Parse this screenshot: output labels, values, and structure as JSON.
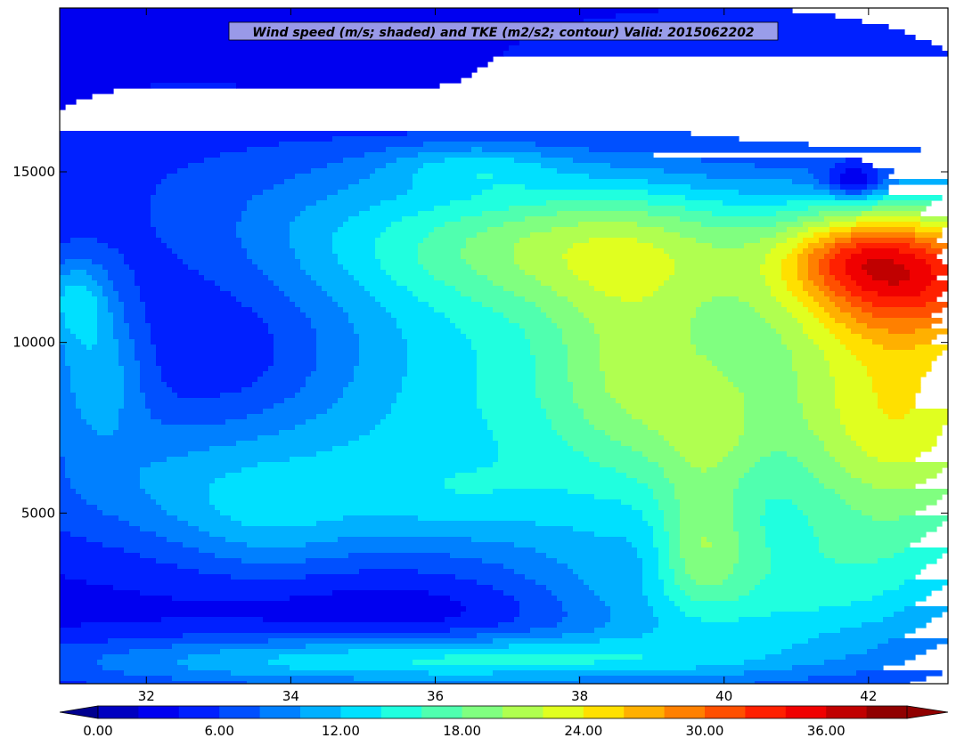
{
  "chart_data": {
    "type": "heatmap",
    "title": "Wind speed (m/s; shaded) and TKE (m2/s2; contour) Valid: 2015062202",
    "xlabel": "",
    "ylabel": "",
    "xlim": [
      30.8,
      43.1
    ],
    "ylim": [
      0,
      19800
    ],
    "x_ticks": [
      32,
      34,
      36,
      38,
      40,
      42
    ],
    "y_ticks": [
      5000,
      10000,
      15000
    ],
    "grid": false,
    "colorbar": {
      "orientation": "horizontal",
      "placement": "bottom",
      "min": 0,
      "max": 40,
      "step": 2,
      "extend": "both",
      "tick_values": [
        0,
        6,
        12,
        18,
        24,
        30,
        36
      ],
      "tick_labels": [
        "0.00",
        "6.00",
        "12.00",
        "18.00",
        "24.00",
        "30.00",
        "36.00"
      ],
      "colors": [
        "#00008f",
        "#0000c0",
        "#0000f0",
        "#0020ff",
        "#0050ff",
        "#0080ff",
        "#00b0ff",
        "#00e0ff",
        "#20ffdf",
        "#50ffaf",
        "#80ff80",
        "#b0ff50",
        "#e0ff20",
        "#ffe000",
        "#ffb000",
        "#ff8000",
        "#ff5000",
        "#ff2000",
        "#f00000",
        "#c00000",
        "#900000"
      ]
    },
    "background_speed": 3,
    "features": [
      {
        "x": 41.0,
        "y": 8500,
        "sx": 4.5,
        "sy": 3200,
        "a": 14
      },
      {
        "x": 42.6,
        "y": 12200,
        "sx": 1.2,
        "sy": 1400,
        "a": 21
      },
      {
        "x": 42.5,
        "y": 7200,
        "sx": 1.0,
        "sy": 3200,
        "a": 8
      },
      {
        "x": 41.7,
        "y": 12500,
        "sx": 0.55,
        "sy": 650,
        "a": 4
      },
      {
        "x": 37.9,
        "y": 13000,
        "sx": 2.4,
        "sy": 1500,
        "a": 13
      },
      {
        "x": 36.5,
        "y": 15200,
        "sx": 0.9,
        "sy": 500,
        "a": 5
      },
      {
        "x": 38.7,
        "y": 9500,
        "sx": 0.8,
        "sy": 2600,
        "a": 5
      },
      {
        "x": 40.3,
        "y": 2500,
        "sx": 2.0,
        "sy": 1700,
        "a": 9
      },
      {
        "x": 39.8,
        "y": 7000,
        "sx": 0.5,
        "sy": 1500,
        "a": 4
      },
      {
        "x": 37.0,
        "y": 700,
        "sx": 2.5,
        "sy": 500,
        "a": 7
      },
      {
        "x": 33.5,
        "y": 600,
        "sx": 2.8,
        "sy": 600,
        "a": 6
      },
      {
        "x": 33.0,
        "y": 5800,
        "sx": 2.1,
        "sy": 1500,
        "a": 6
      },
      {
        "x": 33.7,
        "y": 4500,
        "sx": 0.9,
        "sy": 1100,
        "a": 3
      },
      {
        "x": 36.4,
        "y": 5300,
        "sx": 1.1,
        "sy": 900,
        "a": 3
      },
      {
        "x": 31.3,
        "y": 9200,
        "sx": 0.5,
        "sy": 1500,
        "a": 7
      },
      {
        "x": 31.0,
        "y": 11300,
        "sx": 0.35,
        "sy": 900,
        "a": 7
      },
      {
        "x": 32.0,
        "y": 15000,
        "sx": 1.5,
        "sy": 2000,
        "a": 2
      },
      {
        "x": 34.5,
        "y": 14300,
        "sx": 1.2,
        "sy": 1800,
        "a": 2
      },
      {
        "x": 36.0,
        "y": 9000,
        "sx": 1.5,
        "sy": 2500,
        "a": 2
      },
      {
        "x": 33.3,
        "y": 9500,
        "sx": 1.0,
        "sy": 1500,
        "a": -2
      },
      {
        "x": 35.8,
        "y": 2200,
        "sx": 1.5,
        "sy": 700,
        "a": -2
      },
      {
        "x": 39.0,
        "y": 3800,
        "sx": 0.4,
        "sy": 1000,
        "a": -3
      },
      {
        "x": 40.0,
        "y": 18000,
        "sx": 2.5,
        "sy": 1500,
        "a": 2
      },
      {
        "x": 41.8,
        "y": 14700,
        "sx": 0.3,
        "sy": 350,
        "a": -8
      },
      {
        "x": 39.6,
        "y": 4000,
        "sx": 0.5,
        "sy": 1200,
        "a": 6
      }
    ]
  }
}
